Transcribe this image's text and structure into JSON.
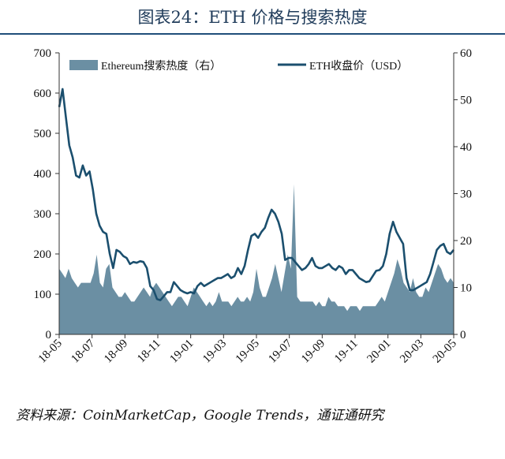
{
  "header": {
    "title": "图表24：ETH 价格与搜索热度"
  },
  "footer": {
    "source": "资料来源：CoinMarketCap，Google Trends，通证通研究"
  },
  "colors": {
    "price_line": "#1b4f6e",
    "search_area": "#6b8fa3",
    "title": "#1f3b5a",
    "divider": "#1f4e79"
  },
  "chart_data": {
    "type": "line",
    "legend_position": "top",
    "grid": false,
    "x_ticks": [
      "18-05",
      "18-07",
      "18-09",
      "18-11",
      "19-01",
      "19-03",
      "19-05",
      "19-07",
      "19-09",
      "19-11",
      "20-01",
      "20-03",
      "20-05"
    ],
    "y_left": {
      "min": 0,
      "max": 700,
      "ticks": [
        0,
        100,
        200,
        300,
        400,
        500,
        600,
        700
      ]
    },
    "y_right": {
      "min": 0,
      "max": 60,
      "ticks": [
        0,
        10,
        20,
        30,
        40,
        50,
        60
      ]
    },
    "series": [
      {
        "name": "Ethereum搜索热度（右）",
        "type": "area",
        "axis": "right",
        "values": [
          14,
          13,
          12,
          14,
          12,
          11,
          10,
          11,
          11,
          11,
          11,
          13,
          17,
          11,
          10,
          14,
          15,
          10,
          9,
          8,
          8,
          9,
          8,
          7,
          7,
          8,
          9,
          10,
          9,
          8,
          10,
          11,
          10,
          9,
          8,
          7,
          6,
          7,
          8,
          8,
          7,
          6,
          8,
          10,
          9,
          8,
          7,
          6,
          7,
          6,
          7,
          9,
          7,
          7,
          7,
          6,
          7,
          8,
          7,
          7,
          8,
          7,
          9,
          14,
          10,
          8,
          8,
          10,
          12,
          15,
          12,
          9,
          13,
          17,
          14,
          32,
          8,
          7,
          7,
          7,
          7,
          7,
          6,
          7,
          6,
          6,
          8,
          7,
          7,
          6,
          6,
          6,
          5,
          6,
          6,
          6,
          5,
          6,
          6,
          6,
          6,
          6,
          7,
          8,
          7,
          9,
          11,
          13,
          16,
          14,
          11,
          10,
          9,
          12,
          9,
          8,
          8,
          10,
          9,
          11,
          13,
          15,
          14,
          12,
          11,
          12,
          11
        ]
      },
      {
        "name": "ETH收盘价（USD）",
        "type": "line",
        "axis": "left",
        "values": [
          565,
          610,
          540,
          470,
          440,
          395,
          390,
          420,
          395,
          405,
          360,
          300,
          270,
          255,
          250,
          200,
          165,
          210,
          205,
          195,
          190,
          175,
          180,
          178,
          182,
          180,
          165,
          120,
          110,
          88,
          85,
          95,
          105,
          105,
          130,
          120,
          110,
          105,
          102,
          105,
          102,
          120,
          128,
          120,
          125,
          130,
          135,
          140,
          140,
          145,
          150,
          140,
          145,
          165,
          150,
          170,
          210,
          245,
          250,
          240,
          255,
          265,
          290,
          310,
          300,
          280,
          250,
          185,
          190,
          190,
          180,
          170,
          160,
          165,
          175,
          190,
          170,
          165,
          165,
          170,
          175,
          165,
          160,
          170,
          165,
          150,
          160,
          160,
          150,
          140,
          135,
          130,
          132,
          145,
          158,
          160,
          170,
          200,
          250,
          280,
          255,
          240,
          225,
          140,
          110,
          110,
          115,
          120,
          125,
          130,
          150,
          180,
          210,
          220,
          225,
          205,
          200,
          210
        ]
      }
    ]
  }
}
